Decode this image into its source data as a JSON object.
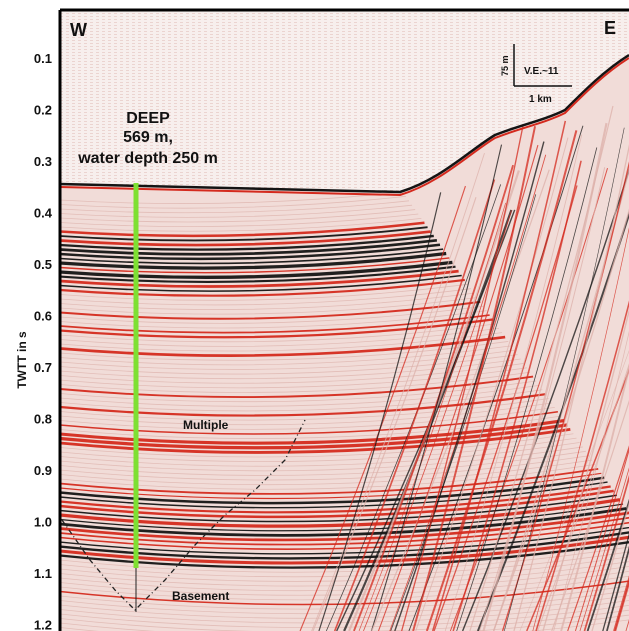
{
  "figure": {
    "west_label": "W",
    "east_label": "E",
    "y_axis_title": "TWTT in s",
    "y_ticks": [
      "0.1",
      "0.2",
      "0.3",
      "0.4",
      "0.5",
      "0.6",
      "0.7",
      "0.8",
      "0.9",
      "1.0",
      "1.1",
      "1.2"
    ],
    "well": {
      "name": "DEEP",
      "depth": "569 m,",
      "water_depth": "water depth 250 m",
      "color": "#7ee032"
    },
    "scale": {
      "vertical": "75 m",
      "vertical_exaggeration": "V.E.~11",
      "horizontal": "1 km"
    },
    "annotations": {
      "multiple": "Multiple",
      "basement": "Basement"
    },
    "colors": {
      "reflector": "#d42a1e",
      "dark": "#141414",
      "background": "#f6eeec"
    }
  }
}
